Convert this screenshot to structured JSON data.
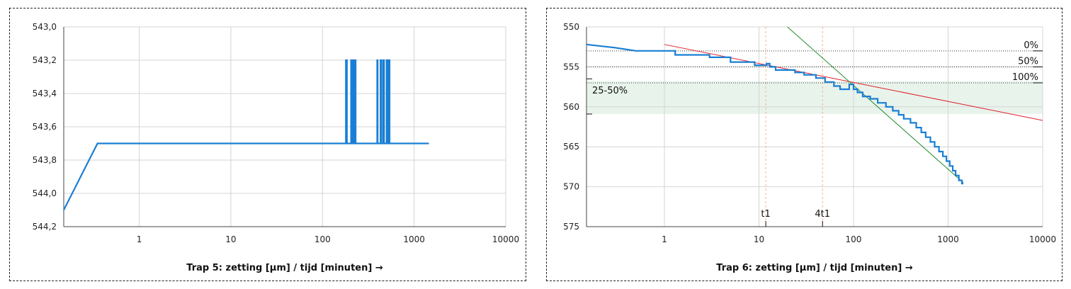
{
  "charts": [
    {
      "type": "line",
      "x_scale": "log",
      "xlabel": "Trap 5: zetting [µm] / tijd [minuten] →",
      "x_ticks": [
        1,
        10,
        100,
        1000,
        10000
      ],
      "x_tick_labels": [
        "1",
        "10",
        "100",
        "1000",
        "10000"
      ],
      "xlim": [
        0.15,
        10000
      ],
      "y_ticks": [
        543.0,
        543.2,
        543.4,
        543.6,
        543.8,
        544.0,
        544.2
      ],
      "y_tick_labels": [
        "543,0",
        "543,2",
        "543,4",
        "543,6",
        "543,8",
        "544,0",
        "544,2"
      ],
      "ylim": [
        543.0,
        544.2
      ],
      "y_inverted": true,
      "grid": true,
      "series": [
        {
          "color": "#1a7fd4",
          "points": [
            [
              0.15,
              544.1
            ],
            [
              0.35,
              543.7
            ],
            [
              180,
              543.7
            ],
            [
              180,
              543.2
            ],
            [
              185,
              543.2
            ],
            [
              185,
              543.7
            ],
            [
              205,
              543.7
            ],
            [
              205,
              543.2
            ],
            [
              210,
              543.2
            ],
            [
              210,
              543.7
            ],
            [
              215,
              543.7
            ],
            [
              215,
              543.2
            ],
            [
              220,
              543.2
            ],
            [
              220,
              543.7
            ],
            [
              225,
              543.7
            ],
            [
              225,
              543.2
            ],
            [
              230,
              543.2
            ],
            [
              230,
              543.7
            ],
            [
              395,
              543.7
            ],
            [
              395,
              543.2
            ],
            [
              400,
              543.2
            ],
            [
              400,
              543.7
            ],
            [
              430,
              543.7
            ],
            [
              430,
              543.2
            ],
            [
              440,
              543.2
            ],
            [
              440,
              543.7
            ],
            [
              460,
              543.7
            ],
            [
              460,
              543.2
            ],
            [
              470,
              543.2
            ],
            [
              470,
              543.7
            ],
            [
              500,
              543.7
            ],
            [
              500,
              543.2
            ],
            [
              510,
              543.2
            ],
            [
              510,
              543.7
            ],
            [
              530,
              543.7
            ],
            [
              530,
              543.2
            ],
            [
              540,
              543.2
            ],
            [
              540,
              543.7
            ],
            [
              1450,
              543.7
            ]
          ]
        }
      ]
    },
    {
      "type": "line",
      "x_scale": "log",
      "xlabel": "Trap 6: zetting [µm] / tijd [minuten] →",
      "x_ticks": [
        1,
        10,
        100,
        1000,
        10000
      ],
      "x_tick_labels": [
        "1",
        "10",
        "100",
        "1000",
        "10000"
      ],
      "xlim": [
        0.15,
        10000
      ],
      "y_ticks": [
        550,
        555,
        560,
        565,
        570,
        575
      ],
      "y_tick_labels": [
        "550",
        "555",
        "560",
        "565",
        "570",
        "575"
      ],
      "ylim": [
        550,
        575
      ],
      "y_inverted": true,
      "grid": true,
      "band": {
        "y0": 556.8,
        "y1": 560.9,
        "label": "25-50%",
        "color": "#e8f3ec"
      },
      "hlines": [
        {
          "y": 553.0,
          "label": "0%"
        },
        {
          "y": 555.0,
          "label": "50%"
        },
        {
          "y": 557.0,
          "label": "100%"
        }
      ],
      "vlines": [
        {
          "x": 11.8,
          "label": "t1"
        },
        {
          "x": 47,
          "label": "4t1"
        }
      ],
      "tangents": [
        {
          "color": "#e0202a",
          "from": [
            1,
            552.2
          ],
          "to": [
            10000,
            561.7
          ]
        },
        {
          "color": "#1f8a2a",
          "from": [
            20,
            550
          ],
          "to": [
            1450,
            569.5
          ]
        }
      ],
      "series": [
        {
          "color": "#1a7fd4",
          "points": [
            [
              0.15,
              552.2
            ],
            [
              0.3,
              552.6
            ],
            [
              0.5,
              553.0
            ],
            [
              1.3,
              553.0
            ],
            [
              1.3,
              553.5
            ],
            [
              3.0,
              553.5
            ],
            [
              3.0,
              553.8
            ],
            [
              5.0,
              553.8
            ],
            [
              5.0,
              554.4
            ],
            [
              9.0,
              554.4
            ],
            [
              9.0,
              554.8
            ],
            [
              12,
              554.8
            ],
            [
              12,
              554.6
            ],
            [
              13,
              554.6
            ],
            [
              13,
              555.0
            ],
            [
              15,
              555.0
            ],
            [
              15,
              555.4
            ],
            [
              24,
              555.4
            ],
            [
              24,
              555.7
            ],
            [
              30,
              555.7
            ],
            [
              30,
              556.0
            ],
            [
              40,
              556.0
            ],
            [
              40,
              556.4
            ],
            [
              50,
              556.4
            ],
            [
              50,
              556.9
            ],
            [
              62,
              556.9
            ],
            [
              62,
              557.4
            ],
            [
              72,
              557.4
            ],
            [
              72,
              557.8
            ],
            [
              90,
              557.8
            ],
            [
              90,
              557.2
            ],
            [
              100,
              557.2
            ],
            [
              100,
              557.8
            ],
            [
              110,
              557.8
            ],
            [
              110,
              558.2
            ],
            [
              125,
              558.2
            ],
            [
              125,
              558.7
            ],
            [
              150,
              558.7
            ],
            [
              150,
              559.0
            ],
            [
              180,
              559.0
            ],
            [
              180,
              559.5
            ],
            [
              220,
              559.5
            ],
            [
              220,
              560.0
            ],
            [
              260,
              560.0
            ],
            [
              260,
              560.5
            ],
            [
              300,
              560.5
            ],
            [
              300,
              561.0
            ],
            [
              340,
              561.0
            ],
            [
              340,
              561.5
            ],
            [
              400,
              561.5
            ],
            [
              400,
              562.0
            ],
            [
              460,
              562.0
            ],
            [
              460,
              562.6
            ],
            [
              520,
              562.6
            ],
            [
              520,
              563.2
            ],
            [
              580,
              563.2
            ],
            [
              580,
              563.8
            ],
            [
              650,
              563.8
            ],
            [
              650,
              564.4
            ],
            [
              720,
              564.4
            ],
            [
              720,
              565.0
            ],
            [
              800,
              565.0
            ],
            [
              800,
              565.6
            ],
            [
              880,
              565.6
            ],
            [
              880,
              566.2
            ],
            [
              960,
              566.2
            ],
            [
              960,
              566.8
            ],
            [
              1040,
              566.8
            ],
            [
              1040,
              567.4
            ],
            [
              1120,
              567.4
            ],
            [
              1120,
              568.0
            ],
            [
              1200,
              568.0
            ],
            [
              1200,
              568.6
            ],
            [
              1300,
              568.6
            ],
            [
              1300,
              569.2
            ],
            [
              1400,
              569.2
            ],
            [
              1400,
              569.6
            ],
            [
              1450,
              569.6
            ]
          ]
        }
      ]
    }
  ]
}
